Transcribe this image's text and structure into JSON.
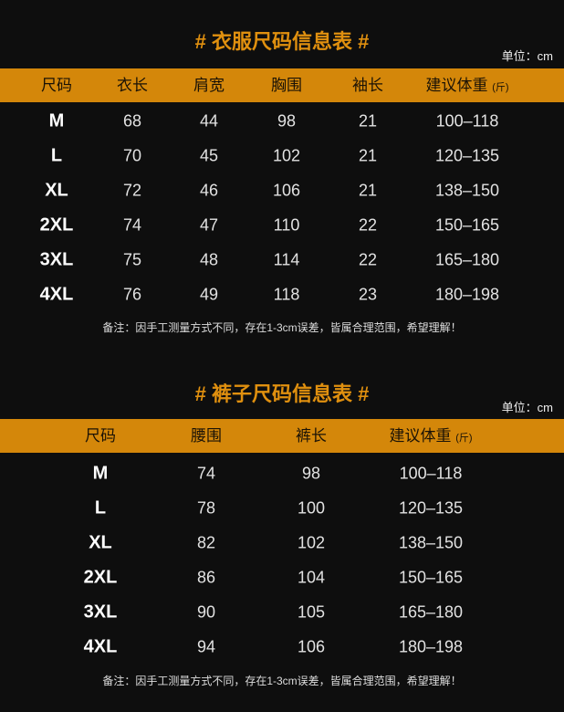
{
  "tops": {
    "title": "# 衣服尺码信息表 #",
    "unit": "单位：cm",
    "headers": [
      "尺码",
      "衣长",
      "肩宽",
      "胸围",
      "袖长",
      "建议体重"
    ],
    "weight_unit": "(斤)",
    "rows": [
      [
        "M",
        "68",
        "44",
        "98",
        "21",
        "100–118"
      ],
      [
        "L",
        "70",
        "45",
        "102",
        "21",
        "120–135"
      ],
      [
        "XL",
        "72",
        "46",
        "106",
        "21",
        "138–150"
      ],
      [
        "2XL",
        "74",
        "47",
        "110",
        "22",
        "150–165"
      ],
      [
        "3XL",
        "75",
        "48",
        "114",
        "22",
        "165–180"
      ],
      [
        "4XL",
        "76",
        "49",
        "118",
        "23",
        "180–198"
      ]
    ],
    "note": "备注：因手工测量方式不同，存在1-3cm误差，皆属合理范围，希望理解！"
  },
  "pants": {
    "title": "# 裤子尺码信息表 #",
    "unit": "单位：cm",
    "headers": [
      "尺码",
      "腰围",
      "裤长",
      "建议体重"
    ],
    "weight_unit": "(斤)",
    "rows": [
      [
        "M",
        "74",
        "98",
        "100–118"
      ],
      [
        "L",
        "78",
        "100",
        "120–135"
      ],
      [
        "XL",
        "82",
        "102",
        "138–150"
      ],
      [
        "2XL",
        "86",
        "104",
        "150–165"
      ],
      [
        "3XL",
        "90",
        "105",
        "165–180"
      ],
      [
        "4XL",
        "94",
        "106",
        "180–198"
      ]
    ],
    "note": "备注：因手工测量方式不同，存在1-3cm误差，皆属合理范围，希望理解！"
  },
  "colors": {
    "background": "#0e0e0e",
    "accent": "#d4870a",
    "title": "#e0900f"
  }
}
